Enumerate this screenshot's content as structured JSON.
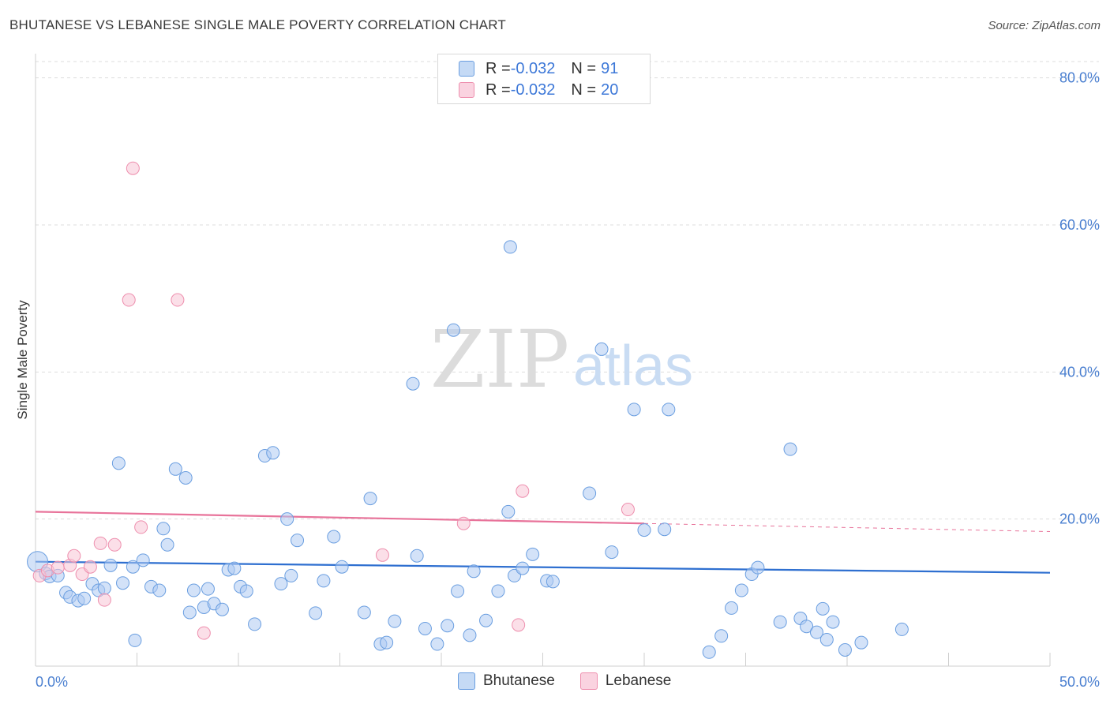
{
  "title": "BHUTANESE VS LEBANESE SINGLE MALE POVERTY CORRELATION CHART",
  "source": "Source: ZipAtlas.com",
  "watermark": {
    "zip": "ZIP",
    "atlas": "atlas"
  },
  "colors": {
    "blue_fill": "#aecbf2",
    "blue_stroke": "#6a9ee0",
    "blue_line": "#2e6fd0",
    "pink_fill": "#f7c5d5",
    "pink_stroke": "#ee8fae",
    "pink_line": "#e8739a",
    "grid": "#dddddd",
    "tick_label": "#4a7fd0"
  },
  "legend": {
    "rows": [
      {
        "swatch": "blue",
        "r_label": "R = ",
        "r_value": "-0.032",
        "n_label": "N = ",
        "n_value": "91"
      },
      {
        "swatch": "pink",
        "r_label": "R = ",
        "r_value": "-0.032",
        "n_label": "N = ",
        "n_value": "20"
      }
    ]
  },
  "bottom_legend": [
    {
      "swatch": "blue",
      "label": "Bhutanese"
    },
    {
      "swatch": "pink",
      "label": "Lebanese"
    }
  ],
  "chart_data": {
    "type": "scatter",
    "title": "BHUTANESE VS LEBANESE SINGLE MALE POVERTY CORRELATION CHART",
    "xlabel": "",
    "ylabel": "Single Male Poverty",
    "xlim": [
      0,
      50
    ],
    "ylim": [
      0,
      82
    ],
    "x_tick_labels": [
      {
        "value": 0,
        "label": "0.0%"
      },
      {
        "value": 50,
        "label": "50.0%"
      }
    ],
    "y_tick_labels": [
      {
        "value": 20,
        "label": "20.0%"
      },
      {
        "value": 40,
        "label": "40.0%"
      },
      {
        "value": 60,
        "label": "60.0%"
      },
      {
        "value": 80,
        "label": "80.0%"
      }
    ],
    "grid": "horizontal dashed",
    "legend_placement": "top-center and bottom",
    "series": [
      {
        "name": "Bhutanese",
        "color": "blue",
        "points": [
          [
            0.1,
            14.2
          ],
          [
            0.5,
            12.6
          ],
          [
            0.7,
            12.2
          ],
          [
            1.1,
            12.3
          ],
          [
            1.5,
            10.0
          ],
          [
            1.7,
            9.4
          ],
          [
            2.1,
            8.9
          ],
          [
            2.4,
            9.2
          ],
          [
            2.8,
            11.2
          ],
          [
            3.1,
            10.3
          ],
          [
            3.4,
            10.6
          ],
          [
            3.7,
            13.7
          ],
          [
            4.1,
            27.6
          ],
          [
            4.3,
            11.3
          ],
          [
            4.8,
            13.5
          ],
          [
            4.9,
            3.5
          ],
          [
            5.3,
            14.4
          ],
          [
            5.7,
            10.8
          ],
          [
            6.1,
            10.3
          ],
          [
            6.3,
            18.7
          ],
          [
            6.5,
            16.5
          ],
          [
            6.9,
            26.8
          ],
          [
            7.4,
            25.6
          ],
          [
            7.6,
            7.3
          ],
          [
            7.8,
            10.3
          ],
          [
            8.3,
            8.0
          ],
          [
            8.5,
            10.5
          ],
          [
            8.8,
            8.5
          ],
          [
            9.2,
            7.7
          ],
          [
            9.5,
            13.1
          ],
          [
            9.8,
            13.3
          ],
          [
            10.1,
            10.8
          ],
          [
            10.4,
            10.2
          ],
          [
            10.8,
            5.7
          ],
          [
            11.3,
            28.6
          ],
          [
            11.7,
            29.0
          ],
          [
            12.1,
            11.2
          ],
          [
            12.4,
            20.0
          ],
          [
            12.6,
            12.3
          ],
          [
            12.9,
            17.1
          ],
          [
            13.8,
            7.2
          ],
          [
            14.2,
            11.6
          ],
          [
            14.7,
            17.6
          ],
          [
            15.1,
            13.5
          ],
          [
            16.2,
            7.3
          ],
          [
            16.5,
            22.8
          ],
          [
            17.0,
            3.0
          ],
          [
            17.3,
            3.2
          ],
          [
            17.7,
            6.1
          ],
          [
            18.6,
            38.4
          ],
          [
            18.8,
            15.0
          ],
          [
            19.2,
            5.1
          ],
          [
            19.8,
            3.0
          ],
          [
            20.3,
            5.5
          ],
          [
            20.6,
            45.7
          ],
          [
            20.8,
            10.2
          ],
          [
            21.4,
            4.2
          ],
          [
            21.6,
            12.9
          ],
          [
            22.2,
            6.2
          ],
          [
            22.8,
            10.2
          ],
          [
            23.3,
            21.0
          ],
          [
            23.4,
            57.0
          ],
          [
            23.6,
            12.3
          ],
          [
            24.0,
            13.3
          ],
          [
            24.5,
            15.2
          ],
          [
            25.2,
            11.6
          ],
          [
            25.5,
            11.5
          ],
          [
            27.3,
            23.5
          ],
          [
            27.9,
            43.1
          ],
          [
            28.4,
            15.5
          ],
          [
            29.5,
            34.9
          ],
          [
            30.0,
            18.5
          ],
          [
            31.0,
            18.6
          ],
          [
            31.2,
            34.9
          ],
          [
            33.2,
            1.9
          ],
          [
            33.8,
            4.1
          ],
          [
            34.3,
            7.9
          ],
          [
            34.8,
            10.3
          ],
          [
            35.3,
            12.5
          ],
          [
            35.6,
            13.4
          ],
          [
            36.7,
            6.0
          ],
          [
            37.2,
            29.5
          ],
          [
            37.7,
            6.5
          ],
          [
            38.0,
            5.4
          ],
          [
            38.5,
            4.6
          ],
          [
            38.8,
            7.8
          ],
          [
            39.0,
            3.6
          ],
          [
            39.3,
            6.0
          ],
          [
            39.9,
            2.2
          ],
          [
            40.7,
            3.2
          ],
          [
            42.7,
            5.0
          ]
        ]
      },
      {
        "name": "Lebanese",
        "color": "pink",
        "points": [
          [
            0.2,
            12.3
          ],
          [
            0.6,
            13.0
          ],
          [
            1.1,
            13.4
          ],
          [
            1.7,
            13.7
          ],
          [
            1.9,
            15.0
          ],
          [
            2.3,
            12.5
          ],
          [
            2.7,
            13.5
          ],
          [
            3.2,
            16.7
          ],
          [
            3.4,
            9.0
          ],
          [
            3.9,
            16.5
          ],
          [
            4.6,
            49.8
          ],
          [
            4.8,
            67.7
          ],
          [
            5.2,
            18.9
          ],
          [
            7.0,
            49.8
          ],
          [
            8.3,
            4.5
          ],
          [
            17.1,
            15.1
          ],
          [
            21.1,
            19.4
          ],
          [
            23.8,
            5.6
          ],
          [
            24.0,
            23.8
          ],
          [
            29.2,
            21.3
          ]
        ]
      }
    ],
    "trend_lines": [
      {
        "series": "Bhutanese",
        "x": [
          0,
          50
        ],
        "y": [
          14.2,
          12.7
        ],
        "style": "solid"
      },
      {
        "series": "Lebanese",
        "x": [
          0,
          30
        ],
        "y": [
          21.0,
          19.4
        ],
        "style": "solid"
      },
      {
        "series": "Lebanese",
        "x": [
          30,
          50
        ],
        "y": [
          19.4,
          18.3
        ],
        "style": "dashed"
      }
    ]
  }
}
